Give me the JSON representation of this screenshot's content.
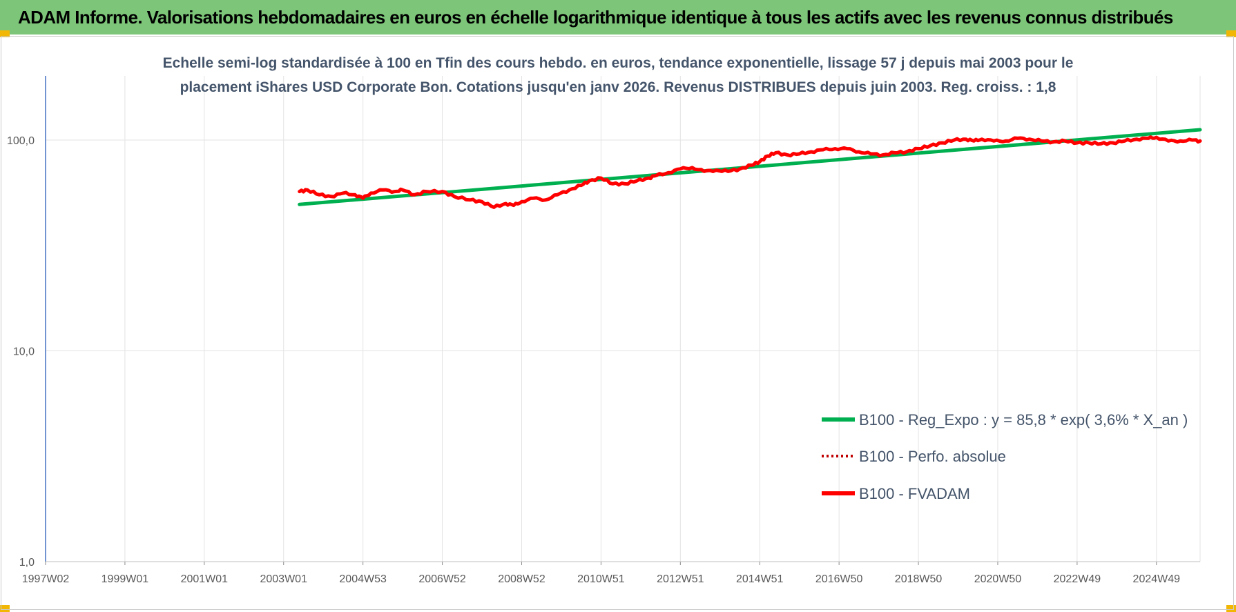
{
  "header": {
    "title": "ADAM Informe. Valorisations hebdomadaires en euros en échelle logarithmique identique à tous les actifs avec les revenus connus distribués"
  },
  "colors": {
    "header_bg": "#7dc679",
    "corner_accent": "#f2b705",
    "trend": "#00b050",
    "fvadam": "#ff0000",
    "perfo": "#c00000"
  },
  "chart_data": {
    "type": "line",
    "title": "Echelle semi-log standardisée à 100 en Tfin des cours hebdo. en euros, tendance exponentielle, lissage 57 j depuis mai 2003 pour le placement iShares USD Corporate Bon. Cotations jusqu'en janv 2026. Revenus DISTRIBUES depuis juin 2003. Reg. croiss. : 1,8",
    "title_lines": [
      "Echelle semi-log standardisée à 100 en Tfin des cours hebdo. en euros, tendance exponentielle, lissage 57 j depuis mai 2003 pour le",
      "placement iShares USD Corporate Bon. Cotations jusqu'en janv 2026. Revenus DISTRIBUES depuis juin 2003. Reg. croiss. : 1,8"
    ],
    "y_scale": "log",
    "ylim": [
      1,
      200
    ],
    "y_ticks": [
      {
        "value": 1,
        "label": "1,0"
      },
      {
        "value": 10,
        "label": "10,0"
      },
      {
        "value": 100,
        "label": "100,0"
      }
    ],
    "xlim": [
      1997.0,
      2026.1
    ],
    "x_ticks": [
      {
        "value": 1997.0,
        "label": "1997W02"
      },
      {
        "value": 1999.0,
        "label": "1999W01"
      },
      {
        "value": 2001.0,
        "label": "2001W01"
      },
      {
        "value": 2003.0,
        "label": "2003W01"
      },
      {
        "value": 2005.0,
        "label": "2004W53"
      },
      {
        "value": 2007.0,
        "label": "2006W52"
      },
      {
        "value": 2009.0,
        "label": "2008W52"
      },
      {
        "value": 2011.0,
        "label": "2010W51"
      },
      {
        "value": 2013.0,
        "label": "2012W51"
      },
      {
        "value": 2015.0,
        "label": "2014W51"
      },
      {
        "value": 2017.0,
        "label": "2016W50"
      },
      {
        "value": 2019.0,
        "label": "2018W50"
      },
      {
        "value": 2021.0,
        "label": "2020W50"
      },
      {
        "value": 2023.0,
        "label": "2022W49"
      },
      {
        "value": 2025.0,
        "label": "2024W49"
      }
    ],
    "grid": {
      "vertical": true,
      "horizontal": true
    },
    "legend_position": "bottom-right",
    "series": [
      {
        "name": "B100 - Reg_Expo : y = 85,8 * exp( 3,6% *  X_an )",
        "style": "solid-thick",
        "color": "#00b050",
        "x": [
          2003.4,
          2026.1
        ],
        "y": [
          49.5,
          112
        ]
      },
      {
        "name": "B100 - Perfo. absolue",
        "style": "dotted",
        "color": "#c00000",
        "x": [],
        "y": []
      },
      {
        "name": "B100 - FVADAM",
        "style": "solid-thick",
        "color": "#ff0000",
        "x": [
          2003.4,
          2003.6,
          2003.9,
          2004.2,
          2004.5,
          2004.8,
          2005.0,
          2005.2,
          2005.5,
          2005.8,
          2006.0,
          2006.3,
          2006.6,
          2007.0,
          2007.3,
          2007.7,
          2008.0,
          2008.3,
          2008.6,
          2008.8,
          2009.0,
          2009.3,
          2009.6,
          2009.9,
          2010.2,
          2010.5,
          2010.7,
          2011.0,
          2011.3,
          2011.6,
          2011.9,
          2012.2,
          2012.4,
          2012.7,
          2013.0,
          2013.3,
          2013.6,
          2013.9,
          2014.2,
          2014.5,
          2014.8,
          2015.0,
          2015.2,
          2015.4,
          2015.7,
          2016.0,
          2016.3,
          2016.6,
          2016.9,
          2017.2,
          2017.5,
          2017.8,
          2018.1,
          2018.4,
          2018.7,
          2019.0,
          2019.3,
          2019.6,
          2019.9,
          2020.2,
          2020.4,
          2020.6,
          2020.9,
          2021.2,
          2021.5,
          2021.8,
          2022.1,
          2022.4,
          2022.7,
          2023.0,
          2023.3,
          2023.6,
          2023.9,
          2024.2,
          2024.5,
          2024.8,
          2025.0,
          2025.3,
          2025.6,
          2025.9,
          2026.1
        ],
        "y": [
          57,
          58,
          55,
          54,
          56,
          55,
          53,
          56,
          58,
          57,
          58,
          55,
          57,
          57,
          54,
          52,
          51,
          48,
          50,
          49,
          51,
          53,
          52,
          55,
          58,
          61,
          64,
          66,
          62,
          62,
          64,
          66,
          68,
          70,
          73,
          74,
          71,
          72,
          71,
          73,
          76,
          79,
          84,
          87,
          85,
          86,
          88,
          90,
          91,
          91,
          88,
          86,
          85,
          87,
          88,
          91,
          94,
          97,
          100,
          101,
          99,
          101,
          99,
          99,
          102,
          101,
          99,
          98,
          99,
          97,
          97,
          96,
          97,
          99,
          101,
          102,
          103,
          99,
          99,
          100,
          99
        ]
      }
    ]
  }
}
